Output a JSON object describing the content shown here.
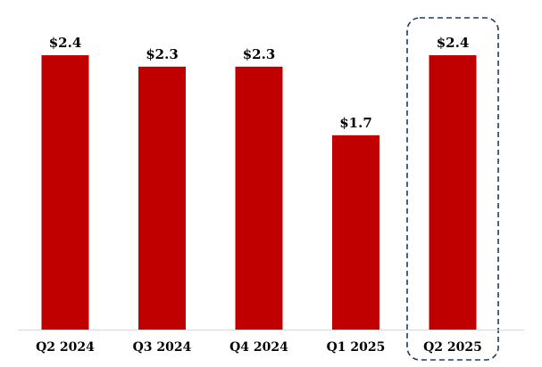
{
  "chart_data": {
    "type": "bar",
    "categories": [
      "Q2 2024",
      "Q3 2024",
      "Q4 2024",
      "Q1 2025",
      "Q2 2025"
    ],
    "values": [
      2.4,
      2.3,
      2.3,
      1.7,
      2.4
    ],
    "data_labels": [
      "$2.4",
      "$2.3",
      "$2.3",
      "$1.7",
      "$2.4"
    ],
    "title": "",
    "xlabel": "",
    "ylabel": "",
    "ylim": [
      0,
      2.4
    ],
    "grid": false,
    "bar_color": "#c00000",
    "highlighted_category": "Q2 2025",
    "highlight_border_color": "#1f3864"
  }
}
